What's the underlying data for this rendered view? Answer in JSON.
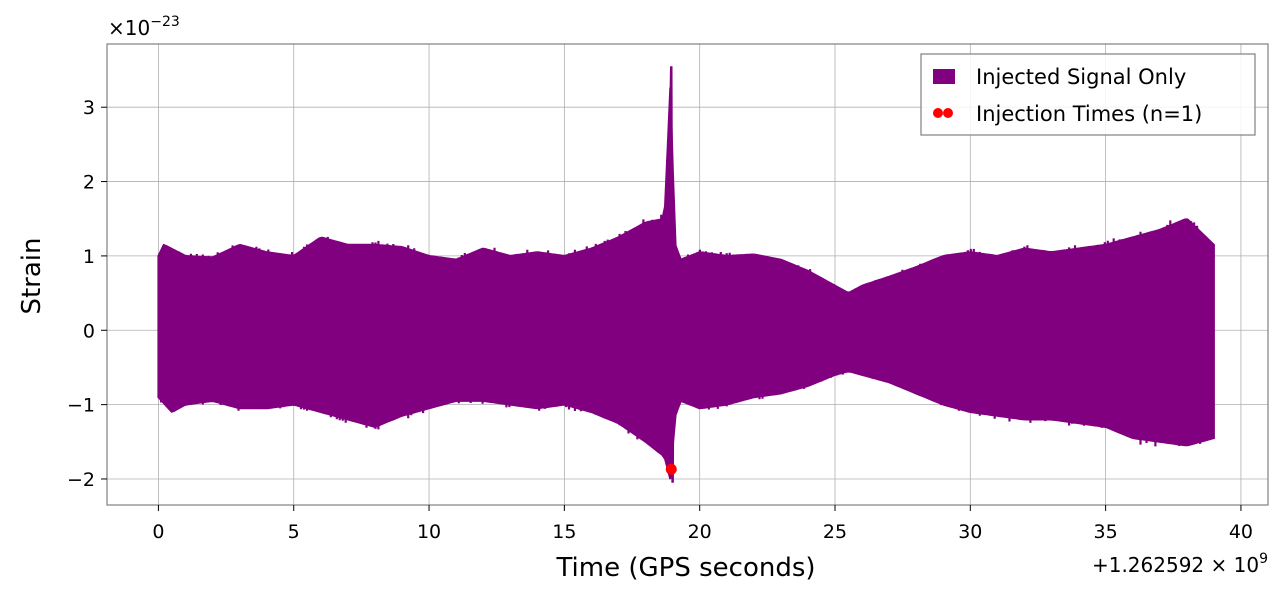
{
  "chart_data": {
    "type": "line",
    "xlabel": "Time (GPS seconds)",
    "ylabel": "Strain",
    "xlim": [
      -1.9,
      41.0
    ],
    "ylim": [
      -2.35,
      3.85
    ],
    "x_ticks": [
      0,
      5,
      10,
      15,
      20,
      25,
      30,
      35,
      40
    ],
    "y_ticks": [
      -2,
      -1,
      0,
      1,
      2,
      3
    ],
    "y_tick_labels": [
      "−2",
      "−1",
      "0",
      "1",
      "2",
      "3"
    ],
    "x_offset_label": "+1.262592 × 10",
    "x_offset_exponent": "9",
    "y_scale_label": "×10",
    "y_scale_exponent": "−23",
    "grid": true,
    "legend_position": "upper right",
    "series": [
      {
        "name": "Injected Signal Only",
        "color": "#800080",
        "kind": "envelope",
        "duration": 39.0,
        "envelope_upper": [
          [
            0.0,
            1.0
          ],
          [
            0.2,
            1.15
          ],
          [
            1,
            1.0
          ],
          [
            2,
            0.98
          ],
          [
            3,
            1.15
          ],
          [
            4,
            1.05
          ],
          [
            5,
            1.0
          ],
          [
            6,
            1.25
          ],
          [
            7,
            1.15
          ],
          [
            8,
            1.15
          ],
          [
            9,
            1.12
          ],
          [
            10,
            1.0
          ],
          [
            11,
            0.95
          ],
          [
            12,
            1.1
          ],
          [
            13,
            1.0
          ],
          [
            14,
            1.05
          ],
          [
            15,
            1.0
          ],
          [
            16,
            1.1
          ],
          [
            17,
            1.25
          ],
          [
            18,
            1.45
          ],
          [
            18.7,
            1.5
          ],
          [
            18.95,
            3.55
          ],
          [
            19.05,
            1.2
          ],
          [
            19.3,
            0.95
          ],
          [
            20,
            1.05
          ],
          [
            21,
            1.0
          ],
          [
            22,
            1.02
          ],
          [
            23,
            0.95
          ],
          [
            24,
            0.8
          ],
          [
            24.5,
            0.7
          ],
          [
            25,
            0.6
          ],
          [
            25.5,
            0.5
          ],
          [
            26,
            0.6
          ],
          [
            27,
            0.72
          ],
          [
            28,
            0.85
          ],
          [
            29,
            1.0
          ],
          [
            30,
            1.05
          ],
          [
            31,
            1.0
          ],
          [
            32,
            1.1
          ],
          [
            33,
            1.05
          ],
          [
            34,
            1.1
          ],
          [
            35,
            1.15
          ],
          [
            36,
            1.25
          ],
          [
            37,
            1.35
          ],
          [
            38,
            1.5
          ],
          [
            39,
            1.15
          ]
        ],
        "envelope_lower": [
          [
            0.0,
            -0.9
          ],
          [
            0.5,
            -1.1
          ],
          [
            1,
            -1.0
          ],
          [
            2,
            -0.95
          ],
          [
            3,
            -1.05
          ],
          [
            4,
            -1.05
          ],
          [
            5,
            -1.0
          ],
          [
            6,
            -1.1
          ],
          [
            7,
            -1.2
          ],
          [
            8,
            -1.3
          ],
          [
            9,
            -1.15
          ],
          [
            10,
            -1.05
          ],
          [
            11,
            -0.95
          ],
          [
            12,
            -0.95
          ],
          [
            13,
            -1.0
          ],
          [
            14,
            -1.05
          ],
          [
            15,
            -1.0
          ],
          [
            16,
            -1.1
          ],
          [
            17,
            -1.25
          ],
          [
            18,
            -1.5
          ],
          [
            18.7,
            -1.7
          ],
          [
            18.95,
            -2.05
          ],
          [
            19.05,
            -1.2
          ],
          [
            19.3,
            -0.95
          ],
          [
            20,
            -1.05
          ],
          [
            21,
            -1.0
          ],
          [
            22,
            -0.9
          ],
          [
            23,
            -0.85
          ],
          [
            24,
            -0.75
          ],
          [
            25,
            -0.6
          ],
          [
            25.5,
            -0.55
          ],
          [
            26,
            -0.6
          ],
          [
            27,
            -0.7
          ],
          [
            28,
            -0.85
          ],
          [
            29,
            -1.0
          ],
          [
            30,
            -1.1
          ],
          [
            31,
            -1.15
          ],
          [
            32,
            -1.2
          ],
          [
            33,
            -1.2
          ],
          [
            34,
            -1.25
          ],
          [
            35,
            -1.3
          ],
          [
            36,
            -1.45
          ],
          [
            37,
            -1.5
          ],
          [
            38,
            -1.55
          ],
          [
            39,
            -1.45
          ]
        ]
      },
      {
        "name": "Injection Times (n=1)",
        "color": "#ff0000",
        "kind": "scatter",
        "points": [
          [
            18.95,
            -1.87
          ]
        ]
      }
    ]
  }
}
